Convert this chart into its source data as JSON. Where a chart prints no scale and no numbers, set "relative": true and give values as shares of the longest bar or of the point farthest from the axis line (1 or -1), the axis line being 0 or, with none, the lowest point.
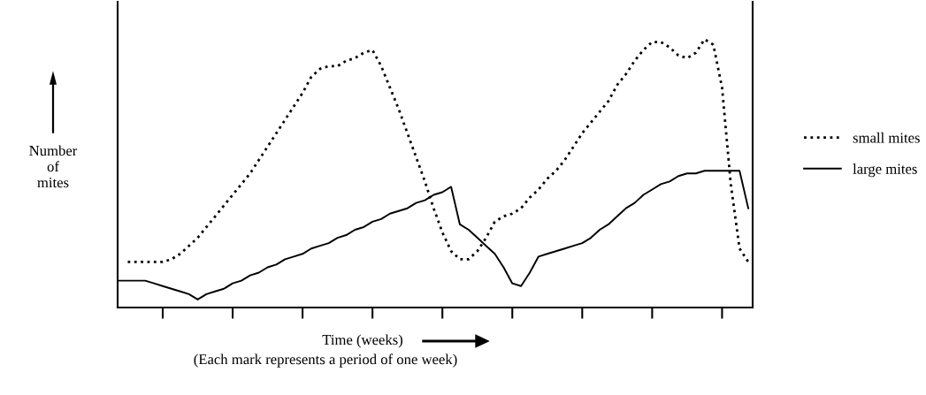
{
  "chart_data": {
    "type": "line",
    "relative": true,
    "xlabel": "Time (weeks)",
    "ylabel": "Number\nof\nmites",
    "annotations": [
      "(Each mark represents a period of one week)"
    ],
    "categories": [
      null,
      null,
      null,
      null,
      null,
      null,
      null,
      null,
      null,
      null,
      null,
      null,
      null,
      null,
      null,
      null,
      null,
      null,
      null,
      null,
      null,
      null,
      null,
      null,
      null,
      null,
      null,
      null,
      null,
      null,
      null,
      null,
      null,
      null,
      null,
      null,
      null,
      null,
      null,
      null,
      null,
      null,
      null,
      null,
      null,
      null,
      null,
      null,
      null,
      null,
      null,
      null,
      null,
      null,
      null,
      null,
      null,
      null,
      null,
      null,
      null,
      null,
      null,
      null,
      null,
      null,
      null,
      null,
      null,
      null,
      null,
      null,
      null
    ],
    "series": [
      {
        "name": "small mites",
        "color": "#000000",
        "line_style": "dotted",
        "values": [
          null,
          0.17,
          0.17,
          0.17,
          0.17,
          0.17,
          0.18,
          0.2,
          0.23,
          0.26,
          0.3,
          0.34,
          0.38,
          0.42,
          0.46,
          0.5,
          0.55,
          0.6,
          0.65,
          0.7,
          0.75,
          0.8,
          0.86,
          0.89,
          0.9,
          0.9,
          0.92,
          0.93,
          0.95,
          0.96,
          0.9,
          0.82,
          0.74,
          0.65,
          0.56,
          0.47,
          0.37,
          0.28,
          0.21,
          0.18,
          0.18,
          0.21,
          0.26,
          0.32,
          0.34,
          0.35,
          0.37,
          0.41,
          0.44,
          0.48,
          0.51,
          0.55,
          0.6,
          0.65,
          0.69,
          0.73,
          0.77,
          0.83,
          0.87,
          0.92,
          0.96,
          0.99,
          0.99,
          0.97,
          0.94,
          0.93,
          0.95,
          1.0,
          0.98,
          0.82,
          0.46,
          0.22,
          0.17
        ]
      },
      {
        "name": "large mites",
        "color": "#000000",
        "line_style": "solid",
        "values": [
          0.1,
          0.1,
          0.1,
          0.1,
          0.09,
          0.08,
          0.07,
          0.06,
          0.05,
          0.03,
          0.05,
          0.06,
          0.07,
          0.09,
          0.1,
          0.12,
          0.13,
          0.15,
          0.16,
          0.18,
          0.19,
          0.2,
          0.22,
          0.23,
          0.24,
          0.26,
          0.27,
          0.29,
          0.3,
          0.32,
          0.33,
          0.35,
          0.36,
          0.37,
          0.39,
          0.4,
          0.42,
          0.43,
          0.45,
          0.31,
          0.29,
          0.26,
          0.23,
          0.2,
          0.15,
          0.09,
          0.08,
          0.13,
          0.19,
          0.2,
          0.21,
          0.22,
          0.23,
          0.24,
          0.26,
          0.29,
          0.31,
          0.34,
          0.37,
          0.39,
          0.42,
          0.44,
          0.46,
          0.47,
          0.49,
          0.5,
          0.5,
          0.51,
          0.51,
          0.51,
          0.51,
          0.51,
          0.37
        ]
      }
    ],
    "legend": "right",
    "tick_labels": false,
    "marker": "none"
  }
}
